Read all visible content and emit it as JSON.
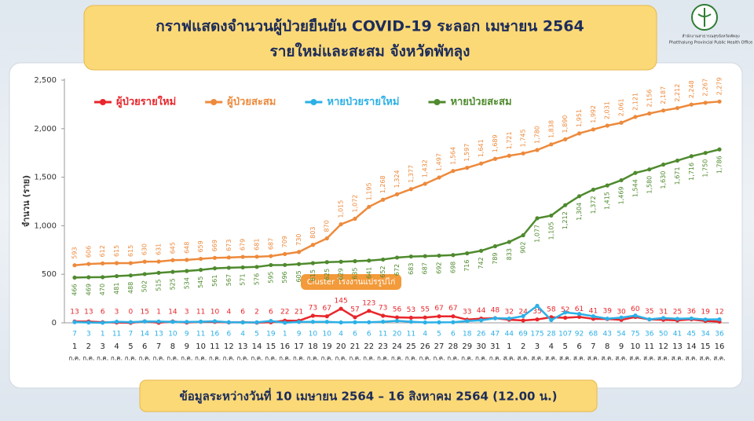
{
  "header": {
    "logo_line1": "สำนักงานสาธารณสุขจังหวัดพัทลุง",
    "logo_line2": "Phatthalung Provincial Public Health Office"
  },
  "chart_data": {
    "type": "line",
    "title": "กราฟแสดงจำนวนผู้ป่วยยืนยัน COVID-19 ระลอก เมษายน 2564",
    "subtitle": "รายใหม่และสะสม จังหวัดพัทลุง",
    "y_label": "จำนวน (ราย)",
    "annotation": "Cluster โรงงานแปรรูปไก่",
    "footer": "ข้อมูลระหว่างวันที่ 10 เมษายน 2564 – 16 สิงหาคม 2564 (12.00 น.)",
    "categories": [
      "1",
      "2",
      "3",
      "4",
      "5",
      "6",
      "7",
      "8",
      "9",
      "10",
      "11",
      "12",
      "13",
      "14",
      "15",
      "16",
      "17",
      "18",
      "19",
      "20",
      "21",
      "22",
      "23",
      "24",
      "25",
      "26",
      "27",
      "28",
      "29",
      "30",
      "31",
      "1",
      "2",
      "3",
      "4",
      "5",
      "6",
      "7",
      "8",
      "9",
      "10",
      "11",
      "12",
      "13",
      "14",
      "15",
      "16"
    ],
    "category_months": [
      "ก.ค.",
      "ก.ค.",
      "ก.ค.",
      "ก.ค.",
      "ก.ค.",
      "ก.ค.",
      "ก.ค.",
      "ก.ค.",
      "ก.ค.",
      "ก.ค.",
      "ก.ค.",
      "ก.ค.",
      "ก.ค.",
      "ก.ค.",
      "ก.ค.",
      "ก.ค.",
      "ก.ค.",
      "ก.ค.",
      "ก.ค.",
      "ก.ค.",
      "ก.ค.",
      "ก.ค.",
      "ก.ค.",
      "ก.ค.",
      "ก.ค.",
      "ก.ค.",
      "ก.ค.",
      "ก.ค.",
      "ก.ค.",
      "ก.ค.",
      "ก.ค.",
      "ส.ค.",
      "ส.ค.",
      "ส.ค.",
      "ส.ค.",
      "ส.ค.",
      "ส.ค.",
      "ส.ค.",
      "ส.ค.",
      "ส.ค.",
      "ส.ค.",
      "ส.ค.",
      "ส.ค.",
      "ส.ค.",
      "ส.ค.",
      "ส.ค.",
      "ส.ค."
    ],
    "series": [
      {
        "name": "ผู้ป่วยรายใหม่",
        "color": "#e8262b",
        "label_pos": "above",
        "values": [
          13,
          13,
          6,
          3,
          0,
          15,
          1,
          14,
          3,
          11,
          10,
          4,
          6,
          2,
          6,
          22,
          21,
          73,
          67,
          145,
          57,
          123,
          73,
          56,
          53,
          55,
          67,
          67,
          33,
          44,
          48,
          32,
          24,
          35,
          58,
          52,
          61,
          41,
          39,
          30,
          60,
          35,
          31,
          25,
          36,
          19,
          12
        ]
      },
      {
        "name": "ผู้ป่วยสะสม",
        "color": "#ed8a3c",
        "label_pos": "above",
        "values": [
          593,
          606,
          612,
          615,
          615,
          630,
          631,
          645,
          648,
          659,
          669,
          673,
          679,
          681,
          687,
          709,
          730,
          803,
          870,
          1015,
          1072,
          1195,
          1268,
          1324,
          1377,
          1432,
          1497,
          1564,
          1597,
          1641,
          1689,
          1721,
          1745,
          1780,
          1838,
          1890,
          1951,
          1992,
          2031,
          2061,
          2121,
          2156,
          2187,
          2212,
          2248,
          2267,
          2279
        ],
        "value_labels": [
          "593",
          "606",
          "612",
          "615",
          "615",
          "630",
          "631",
          "645",
          "648",
          "659",
          "669",
          "673",
          "679",
          "681",
          "687",
          "709",
          "730",
          "803",
          "870",
          "1,015",
          "1,072",
          "1,195",
          "1,268",
          "1,324",
          "1,377",
          "1,432",
          "1,497",
          "1,564",
          "1,597",
          "1,641",
          "1,689",
          "1,721",
          "1,745",
          "1,780",
          "1,838",
          "1,890",
          "1,951",
          "1,992",
          "2,031",
          "2,061",
          "2,121",
          "2,156",
          "2,187",
          "2,212",
          "2,248",
          "2,267",
          "2,279"
        ]
      },
      {
        "name": "หายป่วยรายใหม่",
        "color": "#2bb0e6",
        "label_pos": "below",
        "values": [
          7,
          3,
          1,
          11,
          7,
          14,
          13,
          10,
          9,
          11,
          16,
          6,
          4,
          5,
          19,
          1,
          9,
          10,
          10,
          4,
          6,
          6,
          11,
          20,
          11,
          4,
          5,
          6,
          18,
          26,
          47,
          44,
          69,
          175,
          28,
          107,
          92,
          68,
          43,
          54,
          75,
          36,
          50,
          41,
          45,
          34,
          36
        ]
      },
      {
        "name": "หายป่วยสะสม",
        "color": "#4f8a2e",
        "label_pos": "below",
        "values": [
          466,
          469,
          470,
          481,
          488,
          502,
          515,
          525,
          534,
          545,
          561,
          567,
          571,
          576,
          595,
          596,
          605,
          615,
          625,
          629,
          635,
          641,
          652,
          672,
          683,
          687,
          692,
          698,
          716,
          742,
          789,
          833,
          902,
          1077,
          1105,
          1212,
          1304,
          1372,
          1415,
          1469,
          1544,
          1580,
          1630,
          1671,
          1716,
          1750,
          1786
        ],
        "value_labels": [
          "466",
          "469",
          "470",
          "481",
          "488",
          "502",
          "515",
          "525",
          "534",
          "545",
          "561",
          "567",
          "571",
          "576",
          "595",
          "596",
          "605",
          "615",
          "625",
          "629",
          "635",
          "641",
          "652",
          "672",
          "683",
          "687",
          "692",
          "698",
          "716",
          "742",
          "789",
          "833",
          "902",
          "1,077",
          "1,105",
          "1,212",
          "1,304",
          "1,372",
          "1,415",
          "1,469",
          "1,544",
          "1,580",
          "1,630",
          "1,671",
          "1,716",
          "1,750",
          "1,786"
        ]
      }
    ],
    "ylim": [
      0,
      2500
    ],
    "yticks": [
      0,
      500,
      {
        "value": 1000,
        "label": "1,000"
      },
      {
        "value": 1500,
        "label": "1,500"
      },
      {
        "value": 2000,
        "label": "2,000"
      },
      {
        "value": 2500,
        "label": "2,500"
      }
    ],
    "grid": false,
    "legend": "top"
  }
}
